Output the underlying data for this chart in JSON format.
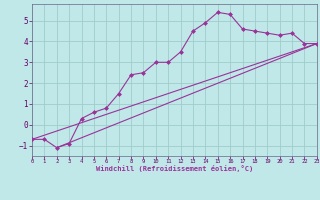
{
  "xlabel": "Windchill (Refroidissement éolien,°C)",
  "xlim": [
    0,
    23
  ],
  "ylim": [
    -1.5,
    5.8
  ],
  "background_color": "#c0e8e8",
  "grid_color": "#a0cccc",
  "line_color": "#993399",
  "line1_x": [
    0,
    1,
    2,
    3,
    4,
    5,
    6,
    7,
    8,
    9,
    10,
    11,
    12,
    13,
    14,
    15,
    16,
    17,
    18,
    19,
    20,
    21,
    22,
    23
  ],
  "line1_y": [
    -0.7,
    -0.7,
    -1.1,
    -0.9,
    0.3,
    0.6,
    0.8,
    1.5,
    2.4,
    2.5,
    3.0,
    3.0,
    3.5,
    4.5,
    4.9,
    5.4,
    5.3,
    4.6,
    4.5,
    4.4,
    4.3,
    4.4,
    3.9,
    3.9
  ],
  "line2_x": [
    0,
    23
  ],
  "line2_y": [
    -0.7,
    3.9
  ],
  "line3_x": [
    2,
    23
  ],
  "line3_y": [
    -1.1,
    3.9
  ],
  "xticks": [
    0,
    1,
    2,
    3,
    4,
    5,
    6,
    7,
    8,
    9,
    10,
    11,
    12,
    13,
    14,
    15,
    16,
    17,
    18,
    19,
    20,
    21,
    22,
    23
  ],
  "yticks": [
    -1,
    0,
    1,
    2,
    3,
    4,
    5
  ],
  "marker": "D",
  "markersize": 2.5,
  "linewidth": 0.8
}
